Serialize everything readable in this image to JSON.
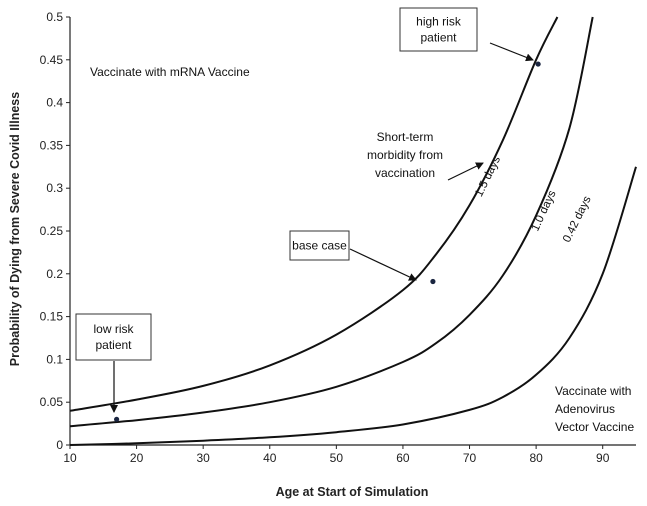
{
  "chart_data": {
    "type": "line",
    "xlabel": "Age at Start of Simulation",
    "ylabel": "Probability of Dying from Severe Covid Illness",
    "xlim": [
      10,
      95
    ],
    "ylim": [
      0,
      0.5
    ],
    "x_ticks": [
      "10",
      "20",
      "30",
      "40",
      "50",
      "60",
      "70",
      "80",
      "90"
    ],
    "y_ticks": [
      "0",
      "0.05",
      "0.1",
      "0.15",
      "0.2",
      "0.25",
      "0.3",
      "0.35",
      "0.4",
      "0.45",
      "0.5"
    ],
    "grid": false,
    "series": [
      {
        "name": "1.5 days",
        "x": [
          10,
          20,
          30,
          40,
          50,
          60,
          65,
          70,
          75,
          80,
          83.2
        ],
        "y": [
          0.04,
          0.053,
          0.069,
          0.093,
          0.129,
          0.181,
          0.223,
          0.28,
          0.356,
          0.45,
          0.5
        ]
      },
      {
        "name": "1.0 days",
        "x": [
          10,
          20,
          30,
          40,
          50,
          60,
          65,
          70,
          75,
          80,
          85,
          88.5
        ],
        "y": [
          0.022,
          0.029,
          0.038,
          0.05,
          0.068,
          0.097,
          0.119,
          0.152,
          0.198,
          0.268,
          0.37,
          0.5
        ]
      },
      {
        "name": "0.42 days",
        "x": [
          10,
          20,
          30,
          40,
          50,
          60,
          70,
          75,
          80,
          85,
          90,
          95
        ],
        "y": [
          0.0,
          0.002,
          0.005,
          0.009,
          0.015,
          0.024,
          0.041,
          0.056,
          0.082,
          0.125,
          0.2,
          0.325
        ]
      }
    ],
    "points": [
      {
        "label": "low risk patient",
        "label_lines": [
          "low risk",
          "patient"
        ],
        "x": 17,
        "y": 0.03
      },
      {
        "label": "base case",
        "label_lines": [
          "base case"
        ],
        "x": 64.5,
        "y": 0.191
      },
      {
        "label": "high risk patient",
        "label_lines": [
          "high risk",
          "patient"
        ],
        "x": 80.3,
        "y": 0.445
      }
    ],
    "annotations": {
      "region_top": "Vaccinate with mRNA Vaccine",
      "region_bottom": [
        "Vaccinate with",
        "Adenovirus",
        "Vector Vaccine"
      ],
      "morbidity": [
        "Short-term",
        "morbidity  from",
        "vaccination"
      ]
    }
  }
}
